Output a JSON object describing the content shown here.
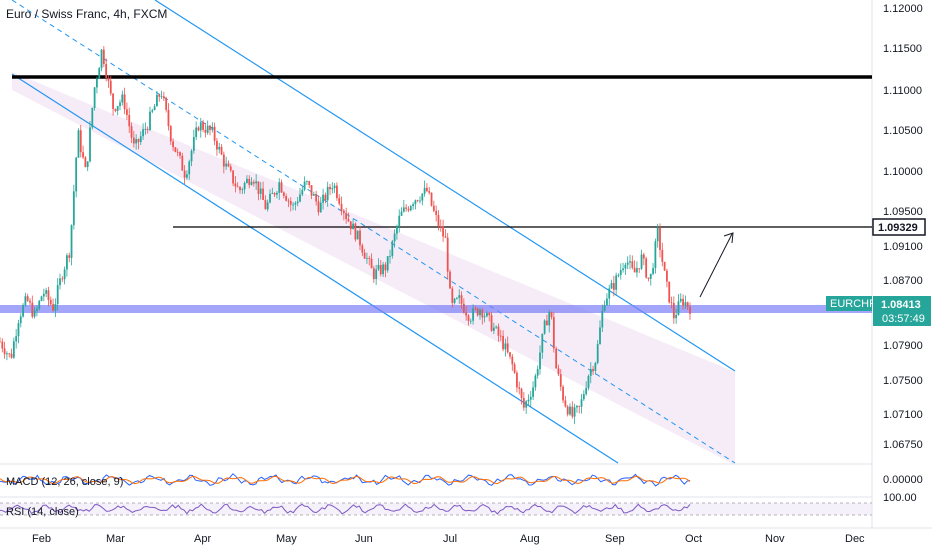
{
  "header": {
    "title": "Euro / Swiss Franc, 4h, FXCM"
  },
  "colors": {
    "candle_up": "#26a69a",
    "candle_down": "#ef5350",
    "channel_line": "#2196f3",
    "channel_fill": "#f3e5f5",
    "support_band": "#7b7ff7",
    "resistance": "#000000",
    "tag_teal": "#26a69a",
    "macd_line": "#2962ff",
    "signal_line": "#ff6d00",
    "rsi_line": "#7e57c2"
  },
  "chart_data": {
    "type": "candlestick",
    "symbol": "EURCHF",
    "ylim": [
      1.0655,
      1.1211
    ],
    "y_ticks": [
      "1.12000",
      "1.11500",
      "1.11000",
      "1.10500",
      "1.10000",
      "1.09500",
      "1.09100",
      "1.08700",
      "1.07900",
      "1.07500",
      "1.07100",
      "1.06750"
    ],
    "x_ticks": [
      "Feb",
      "Mar",
      "Apr",
      "May",
      "Jun",
      "Jul",
      "Aug",
      "Sep",
      "Oct",
      "Nov",
      "Dec"
    ],
    "price_path": [
      {
        "t": 0,
        "p": 1.08
      },
      {
        "t": 0.4,
        "p": 1.078
      },
      {
        "t": 0.7,
        "p": 1.083
      },
      {
        "t": 1.0,
        "p": 1.085
      },
      {
        "t": 1.3,
        "p": 1.083
      },
      {
        "t": 1.6,
        "p": 1.086
      },
      {
        "t": 2.0,
        "p": 1.084
      },
      {
        "t": 2.3,
        "p": 1.088
      },
      {
        "t": 2.6,
        "p": 1.091
      },
      {
        "t": 2.9,
        "p": 1.105
      },
      {
        "t": 3.2,
        "p": 1.1
      },
      {
        "t": 3.5,
        "p": 1.11
      },
      {
        "t": 3.8,
        "p": 1.115
      },
      {
        "t": 4.2,
        "p": 1.108
      },
      {
        "t": 4.6,
        "p": 1.109
      },
      {
        "t": 5.0,
        "p": 1.103
      },
      {
        "t": 5.5,
        "p": 1.106
      },
      {
        "t": 6.0,
        "p": 1.11
      },
      {
        "t": 6.4,
        "p": 1.104
      },
      {
        "t": 6.9,
        "p": 1.1
      },
      {
        "t": 7.4,
        "p": 1.106
      },
      {
        "t": 7.9,
        "p": 1.105
      },
      {
        "t": 8.4,
        "p": 1.101
      },
      {
        "t": 8.9,
        "p": 1.098
      },
      {
        "t": 9.4,
        "p": 1.1
      },
      {
        "t": 9.9,
        "p": 1.096
      },
      {
        "t": 10.4,
        "p": 1.099
      },
      {
        "t": 10.9,
        "p": 1.096
      },
      {
        "t": 11.4,
        "p": 1.099
      },
      {
        "t": 11.9,
        "p": 1.096
      },
      {
        "t": 12.4,
        "p": 1.099
      },
      {
        "t": 12.9,
        "p": 1.095
      },
      {
        "t": 13.4,
        "p": 1.092
      },
      {
        "t": 13.9,
        "p": 1.088
      },
      {
        "t": 14.4,
        "p": 1.089
      },
      {
        "t": 14.9,
        "p": 1.095
      },
      {
        "t": 15.4,
        "p": 1.097
      },
      {
        "t": 15.9,
        "p": 1.098
      },
      {
        "t": 16.2,
        "p": 1.095
      },
      {
        "t": 16.6,
        "p": 1.092
      },
      {
        "t": 16.8,
        "p": 1.084
      },
      {
        "t": 17.1,
        "p": 1.085
      },
      {
        "t": 17.5,
        "p": 1.083
      },
      {
        "t": 17.9,
        "p": 1.084
      },
      {
        "t": 18.3,
        "p": 1.082
      },
      {
        "t": 18.7,
        "p": 1.08
      },
      {
        "t": 19.1,
        "p": 1.077
      },
      {
        "t": 19.5,
        "p": 1.072
      },
      {
        "t": 19.9,
        "p": 1.075
      },
      {
        "t": 20.3,
        "p": 1.082
      },
      {
        "t": 20.5,
        "p": 1.084
      },
      {
        "t": 20.7,
        "p": 1.077
      },
      {
        "t": 21.0,
        "p": 1.073
      },
      {
        "t": 21.3,
        "p": 1.071
      },
      {
        "t": 21.6,
        "p": 1.072
      },
      {
        "t": 21.9,
        "p": 1.076
      },
      {
        "t": 22.2,
        "p": 1.078
      },
      {
        "t": 22.5,
        "p": 1.085
      },
      {
        "t": 22.9,
        "p": 1.087
      },
      {
        "t": 23.3,
        "p": 1.09
      },
      {
        "t": 23.6,
        "p": 1.088
      },
      {
        "t": 23.9,
        "p": 1.09
      },
      {
        "t": 24.2,
        "p": 1.087
      },
      {
        "t": 24.5,
        "p": 1.093
      },
      {
        "t": 24.8,
        "p": 1.087
      },
      {
        "t": 25.1,
        "p": 1.083
      },
      {
        "t": 25.4,
        "p": 1.085
      },
      {
        "t": 25.7,
        "p": 1.0841
      }
    ],
    "horizontal_lines": [
      {
        "name": "upper-resistance",
        "price": 1.1113
      },
      {
        "name": "middle-resistance",
        "price": 1.0932
      }
    ],
    "support_band": {
      "low": 1.0835,
      "high": 1.0845
    },
    "price_tags": [
      {
        "name": "resistance-tag",
        "label": "1.09329",
        "style": "outline"
      },
      {
        "name": "symbol-tag",
        "label": "EURCHF",
        "style": "teal"
      },
      {
        "name": "last-price-tag",
        "label": "1.08413",
        "style": "teal"
      },
      {
        "name": "countdown-tag",
        "label": "03:57:49",
        "style": "teal-sub"
      }
    ]
  },
  "indicators": {
    "macd": {
      "label": "MACD (12, 26, close, 9)",
      "tick": "0.00000"
    },
    "rsi": {
      "label": "RSI (14, close)",
      "tick": "100.00"
    }
  }
}
